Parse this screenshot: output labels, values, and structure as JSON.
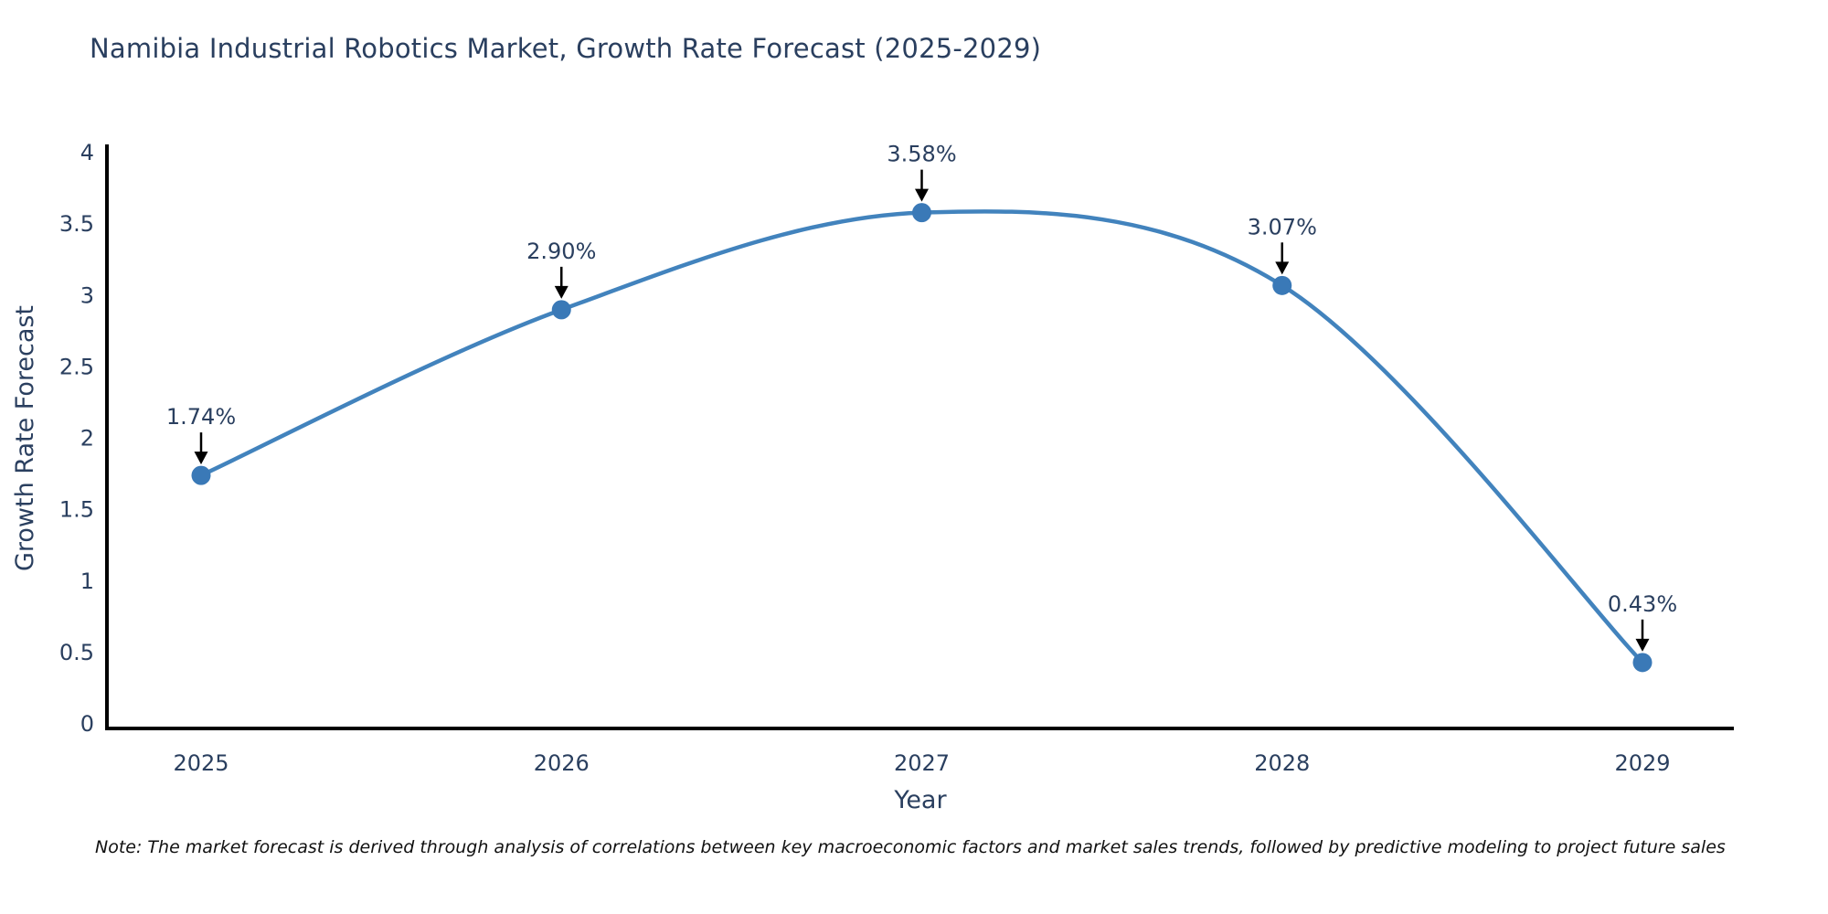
{
  "figure": {
    "note": "Note: The market forecast is derived through analysis of correlations between key macroeconomic factors and market sales trends, followed by predictive modeling to project future sales"
  },
  "chart_data": {
    "type": "line",
    "line_shape": "spline",
    "title": "Namibia Industrial Robotics Market, Growth Rate Forecast (2025-2029)",
    "xlabel": "Year",
    "ylabel": "Growth Rate Forecast",
    "categories": [
      "2025",
      "2026",
      "2027",
      "2028",
      "2029"
    ],
    "values": [
      1.74,
      2.9,
      3.58,
      3.07,
      0.43
    ],
    "point_labels": [
      "1.74%",
      "2.90%",
      "3.58%",
      "3.07%",
      "0.43%"
    ],
    "ylim": [
      0,
      4
    ],
    "yticks": [
      "0",
      "0.5",
      "1",
      "1.5",
      "2",
      "2.5",
      "3",
      "3.5",
      "4"
    ],
    "grid": false,
    "legend_position": "none",
    "colors": {
      "line": "#4283bd",
      "marker": "#3a79b7",
      "annotation_arrow": "#000000",
      "text": "#2a3f5f",
      "axis_line": "#000000",
      "note_text": "#111111",
      "background": "#ffffff"
    }
  }
}
